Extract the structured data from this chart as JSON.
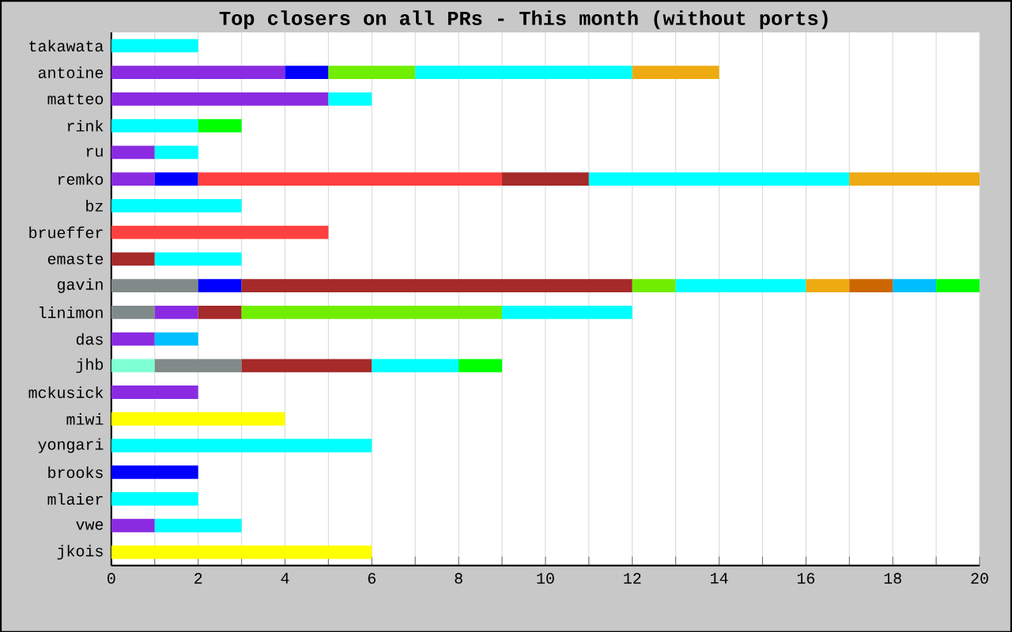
{
  "chart_data": {
    "type": "bar",
    "orientation": "horizontal",
    "stacked": true,
    "title": "Top closers on all PRs - This month (without ports)",
    "categories": [
      "takawata",
      "antoine",
      "matteo",
      "rink",
      "ru",
      "remko",
      "bz",
      "brueffer",
      "emaste",
      "gavin",
      "linimon",
      "das",
      "jhb",
      "mckusick",
      "miwi",
      "yongari",
      "brooks",
      "mlaier",
      "vwe",
      "jkois"
    ],
    "series": [
      {
        "color": "#7fffd4",
        "values": [
          null,
          null,
          null,
          null,
          null,
          null,
          null,
          null,
          null,
          null,
          null,
          null,
          1,
          null,
          null,
          null,
          null,
          null,
          null,
          null
        ]
      },
      {
        "color": "#808a88",
        "values": [
          null,
          null,
          null,
          null,
          null,
          null,
          null,
          null,
          null,
          2,
          1,
          null,
          2,
          null,
          null,
          null,
          null,
          null,
          null,
          null
        ]
      },
      {
        "color": "#8a2be2",
        "values": [
          null,
          4,
          5,
          null,
          1,
          1,
          null,
          null,
          null,
          null,
          1,
          1,
          null,
          2,
          null,
          null,
          null,
          null,
          1,
          null
        ]
      },
      {
        "color": "#0000ff",
        "values": [
          null,
          1,
          null,
          null,
          null,
          1,
          null,
          null,
          null,
          1,
          null,
          null,
          null,
          null,
          null,
          null,
          2,
          null,
          null,
          null
        ]
      },
      {
        "color": "#ff4040",
        "values": [
          null,
          null,
          null,
          null,
          null,
          7,
          null,
          5,
          null,
          null,
          null,
          null,
          null,
          null,
          null,
          null,
          null,
          null,
          null,
          null
        ]
      },
      {
        "color": "#a52a2a",
        "values": [
          null,
          null,
          null,
          null,
          null,
          2,
          null,
          null,
          1,
          9,
          1,
          null,
          3,
          null,
          null,
          null,
          null,
          null,
          null,
          null
        ]
      },
      {
        "color": "#70ee00",
        "values": [
          null,
          2,
          null,
          null,
          null,
          null,
          null,
          null,
          null,
          1,
          6,
          null,
          null,
          null,
          null,
          null,
          null,
          null,
          null,
          null
        ]
      },
      {
        "color": "#00ffff",
        "values": [
          2,
          5,
          1,
          2,
          1,
          6,
          3,
          null,
          2,
          3,
          3,
          null,
          2,
          null,
          null,
          6,
          null,
          2,
          2,
          null
        ]
      },
      {
        "color": "#eeaa11",
        "values": [
          null,
          2,
          null,
          null,
          null,
          3,
          null,
          null,
          null,
          1,
          null,
          null,
          null,
          null,
          null,
          null,
          null,
          null,
          null,
          null
        ]
      },
      {
        "color": "#cc6600",
        "values": [
          null,
          null,
          null,
          null,
          null,
          null,
          null,
          null,
          null,
          1,
          null,
          null,
          null,
          null,
          null,
          null,
          null,
          null,
          null,
          null
        ]
      },
      {
        "color": "#00bfff",
        "values": [
          null,
          null,
          null,
          null,
          null,
          null,
          null,
          null,
          null,
          1,
          null,
          1,
          null,
          null,
          null,
          null,
          null,
          null,
          null,
          null
        ]
      },
      {
        "color": "#00ff00",
        "values": [
          null,
          null,
          null,
          1,
          null,
          null,
          null,
          null,
          null,
          1,
          null,
          null,
          1,
          null,
          null,
          null,
          null,
          null,
          null,
          null
        ]
      },
      {
        "color": "#ffff00",
        "values": [
          null,
          null,
          null,
          null,
          null,
          null,
          null,
          null,
          null,
          null,
          null,
          null,
          null,
          null,
          4,
          null,
          null,
          null,
          null,
          6
        ]
      }
    ],
    "xlim": [
      0,
      20
    ],
    "xticks": [
      0,
      {
        "value": 1,
        "label": null
      },
      2,
      {
        "value": 3,
        "label": null
      },
      4,
      {
        "value": 5,
        "label": null
      },
      6,
      {
        "value": 7,
        "label": null
      },
      8,
      {
        "value": 9,
        "label": null
      },
      10,
      {
        "value": 11,
        "label": null
      },
      12,
      {
        "value": 13,
        "label": null
      },
      14,
      {
        "value": 15,
        "label": null
      },
      16,
      {
        "value": 17,
        "label": null
      },
      18,
      {
        "value": 19,
        "label": null
      },
      20
    ],
    "grid": "x"
  }
}
